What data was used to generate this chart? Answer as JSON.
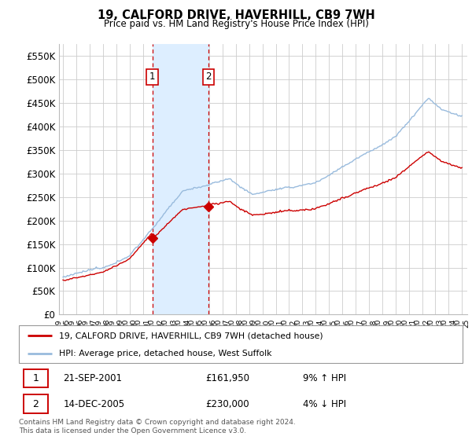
{
  "title": "19, CALFORD DRIVE, HAVERHILL, CB9 7WH",
  "subtitle": "Price paid vs. HM Land Registry's House Price Index (HPI)",
  "ylabel_ticks": [
    "£0",
    "£50K",
    "£100K",
    "£150K",
    "£200K",
    "£250K",
    "£300K",
    "£350K",
    "£400K",
    "£450K",
    "£500K",
    "£550K"
  ],
  "ytick_values": [
    0,
    50000,
    100000,
    150000,
    200000,
    250000,
    300000,
    350000,
    400000,
    450000,
    500000,
    550000
  ],
  "ylim": [
    0,
    575000
  ],
  "legend_line1": "19, CALFORD DRIVE, HAVERHILL, CB9 7WH (detached house)",
  "legend_line2": "HPI: Average price, detached house, West Suffolk",
  "marker1_date": "21-SEP-2001",
  "marker1_price": "£161,950",
  "marker1_hpi": "9% ↑ HPI",
  "marker2_date": "14-DEC-2005",
  "marker2_price": "£230,000",
  "marker2_hpi": "4% ↓ HPI",
  "footnote": "Contains HM Land Registry data © Crown copyright and database right 2024.\nThis data is licensed under the Open Government Licence v3.0.",
  "line_color_red": "#cc0000",
  "line_color_blue": "#99bbdd",
  "shade_color": "#ddeeff",
  "background_color": "#ffffff",
  "grid_color": "#cccccc",
  "sale1_year": 2001.72,
  "sale1_price": 161950,
  "sale2_year": 2005.95,
  "sale2_price": 230000
}
